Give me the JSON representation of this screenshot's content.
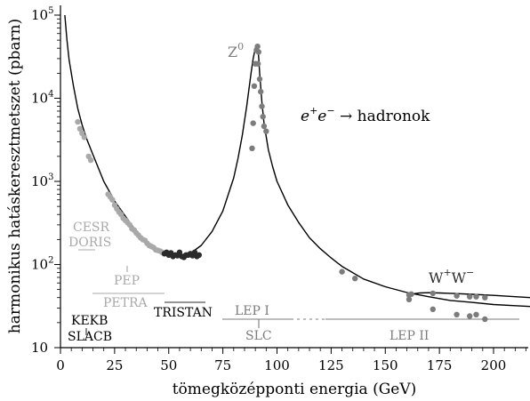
{
  "chart_data": {
    "type": "scatter",
    "title": "",
    "xlabel": "tömegközépponti energia (GeV)",
    "ylabel": "harmonikus hatáskeresztmetszet (pbarn)",
    "xlim": [
      0,
      220
    ],
    "ylim": [
      10,
      100000
    ],
    "yscale": "log",
    "grid": false,
    "x_ticks": [
      0,
      25,
      50,
      75,
      100,
      125,
      150,
      175,
      200
    ],
    "y_ticks": [
      {
        "value": 10,
        "base": "10",
        "exp": ""
      },
      {
        "value": 100,
        "base": "10",
        "exp": "2"
      },
      {
        "value": 1000,
        "base": "10",
        "exp": "3"
      },
      {
        "value": 10000,
        "base": "10",
        "exp": "4"
      },
      {
        "value": 100000,
        "base": "10",
        "exp": "5"
      }
    ],
    "colors": {
      "light": "#a9a9a9",
      "dark": "#2b2b2b",
      "mid": "#7c7c7c",
      "axis": "#000000"
    },
    "series": [
      {
        "color": "light",
        "x": [
          8,
          9,
          10,
          11,
          13,
          14,
          22,
          23,
          24,
          25,
          26,
          27,
          28,
          29,
          30,
          31,
          32,
          33,
          34,
          35,
          36,
          37,
          38,
          39,
          40,
          41,
          42,
          43,
          44,
          45,
          46,
          47
        ],
        "y": [
          5200,
          4300,
          3800,
          3400,
          2000,
          1800,
          700,
          650,
          600,
          520,
          470,
          430,
          400,
          360,
          340,
          320,
          300,
          270,
          260,
          240,
          225,
          210,
          200,
          195,
          180,
          170,
          165,
          160,
          150,
          148,
          145,
          140
        ]
      },
      {
        "color": "dark",
        "x": [
          48,
          49,
          50,
          51,
          52,
          53,
          54,
          55,
          56,
          57,
          58,
          59,
          60,
          61,
          62,
          63,
          64
        ],
        "y": [
          135,
          140,
          130,
          138,
          125,
          130,
          128,
          140,
          125,
          122,
          130,
          130,
          135,
          128,
          140,
          125,
          130
        ]
      },
      {
        "color": "mid",
        "x": [
          88.5,
          89,
          89.5,
          90,
          90.5,
          91,
          91.2,
          91.5,
          92,
          92.5,
          93,
          93.5,
          94,
          95
        ],
        "y": [
          2500,
          5000,
          14000,
          26000,
          38000,
          42000,
          26000,
          36000,
          17000,
          12000,
          8000,
          6000,
          4600,
          4000
        ]
      },
      {
        "color": "mid",
        "x": [
          130,
          136,
          161,
          172,
          183,
          189,
          192,
          196
        ],
        "y": [
          82,
          68,
          38,
          29,
          25,
          24,
          25,
          22
        ]
      },
      {
        "color": "mid",
        "x": [
          161,
          162,
          172,
          183,
          189,
          192,
          196
        ],
        "y": [
          43,
          44,
          45,
          42,
          41,
          41,
          40
        ]
      }
    ],
    "curves": [
      {
        "name": "total",
        "x": [
          2,
          3,
          4,
          5,
          6,
          8,
          10,
          12,
          15,
          20,
          25,
          30,
          35,
          40,
          45,
          50,
          55,
          60,
          65,
          70,
          75,
          80,
          82,
          84,
          86,
          88,
          89,
          90,
          90.5,
          91,
          91.2,
          91.6,
          92,
          93,
          94,
          96,
          98,
          100,
          105,
          110,
          115,
          120,
          125,
          130,
          140,
          150,
          160,
          170,
          180,
          190,
          200,
          210,
          220
        ],
        "y": [
          100000,
          50000,
          29000,
          20000,
          14000,
          7500,
          4800,
          3300,
          2100,
          1000,
          580,
          380,
          250,
          185,
          150,
          135,
          130,
          136,
          170,
          250,
          440,
          1100,
          1900,
          3600,
          8000,
          20000,
          30000,
          40000,
          43000,
          42000,
          40000,
          30000,
          20000,
          9000,
          5000,
          2400,
          1500,
          1000,
          520,
          320,
          210,
          155,
          120,
          95,
          67,
          54,
          46,
          41,
          37,
          35,
          33,
          32,
          31
        ]
      },
      {
        "name": "WW",
        "x": [
          160,
          161,
          163,
          166,
          170,
          175,
          180,
          190,
          200,
          210,
          220
        ],
        "y": [
          38,
          42,
          44.5,
          45.5,
          45.8,
          45.5,
          45,
          43.8,
          42.5,
          41,
          39.5
        ]
      }
    ],
    "annotations": {
      "z0": {
        "base": "Z",
        "sup": "0"
      },
      "process": {
        "e": "e",
        "plus": "+",
        "minus": "−",
        "rest": " → hadronok"
      },
      "ww": {
        "a": "W",
        "plus": "+",
        "b": "W",
        "minus": "−"
      },
      "colliders": {
        "cesr": "CESR",
        "doris": "DORIS",
        "pep": "PEP",
        "petra": "PETRA",
        "tristan": "TRISTAN",
        "kekb": "KEKB",
        "slacb": "SLACB",
        "lep1": "LEP I",
        "slc": "SLC",
        "lep2": "LEP II"
      }
    }
  }
}
